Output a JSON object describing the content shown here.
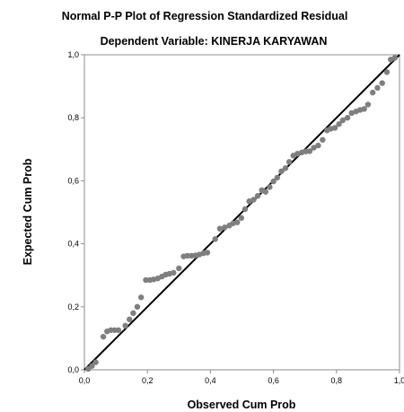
{
  "chart_data": {
    "type": "scatter",
    "title": "Normal P-P Plot of Regression Standardized Residual",
    "subtitle": "Dependent Variable: KINERJA KARYAWAN",
    "xlabel": "Observed Cum Prob",
    "ylabel": "Expected Cum Prob",
    "xlim": [
      0,
      1
    ],
    "ylim": [
      0,
      1
    ],
    "grid": false,
    "x_ticks": [
      "0,0",
      "0,2",
      "0,4",
      "0,6",
      "0,8",
      "1,0"
    ],
    "y_ticks": [
      "0,0",
      "0,2",
      "0,4",
      "0,6",
      "0,8",
      "1,0"
    ],
    "reference_line": {
      "from": [
        0,
        0
      ],
      "to": [
        1,
        1
      ]
    },
    "points": [
      [
        0.012,
        0.003
      ],
      [
        0.024,
        0.012
      ],
      [
        0.036,
        0.024
      ],
      [
        0.06,
        0.105
      ],
      [
        0.072,
        0.122
      ],
      [
        0.084,
        0.126
      ],
      [
        0.096,
        0.126
      ],
      [
        0.108,
        0.126
      ],
      [
        0.13,
        0.14
      ],
      [
        0.143,
        0.16
      ],
      [
        0.155,
        0.18
      ],
      [
        0.168,
        0.2
      ],
      [
        0.18,
        0.23
      ],
      [
        0.195,
        0.285
      ],
      [
        0.208,
        0.285
      ],
      [
        0.22,
        0.287
      ],
      [
        0.233,
        0.29
      ],
      [
        0.246,
        0.296
      ],
      [
        0.258,
        0.302
      ],
      [
        0.27,
        0.305
      ],
      [
        0.283,
        0.308
      ],
      [
        0.3,
        0.322
      ],
      [
        0.315,
        0.36
      ],
      [
        0.327,
        0.362
      ],
      [
        0.34,
        0.362
      ],
      [
        0.352,
        0.363
      ],
      [
        0.365,
        0.366
      ],
      [
        0.378,
        0.37
      ],
      [
        0.39,
        0.372
      ],
      [
        0.415,
        0.415
      ],
      [
        0.43,
        0.448
      ],
      [
        0.445,
        0.452
      ],
      [
        0.46,
        0.458
      ],
      [
        0.472,
        0.465
      ],
      [
        0.485,
        0.468
      ],
      [
        0.498,
        0.482
      ],
      [
        0.51,
        0.51
      ],
      [
        0.523,
        0.535
      ],
      [
        0.537,
        0.54
      ],
      [
        0.55,
        0.552
      ],
      [
        0.563,
        0.57
      ],
      [
        0.575,
        0.565
      ],
      [
        0.588,
        0.58
      ],
      [
        0.6,
        0.598
      ],
      [
        0.612,
        0.61
      ],
      [
        0.625,
        0.63
      ],
      [
        0.638,
        0.64
      ],
      [
        0.65,
        0.66
      ],
      [
        0.663,
        0.68
      ],
      [
        0.676,
        0.686
      ],
      [
        0.69,
        0.69
      ],
      [
        0.703,
        0.693
      ],
      [
        0.715,
        0.694
      ],
      [
        0.728,
        0.705
      ],
      [
        0.742,
        0.712
      ],
      [
        0.756,
        0.73
      ],
      [
        0.77,
        0.76
      ],
      [
        0.782,
        0.765
      ],
      [
        0.795,
        0.768
      ],
      [
        0.808,
        0.78
      ],
      [
        0.82,
        0.792
      ],
      [
        0.835,
        0.8
      ],
      [
        0.848,
        0.815
      ],
      [
        0.862,
        0.82
      ],
      [
        0.875,
        0.825
      ],
      [
        0.888,
        0.828
      ],
      [
        0.9,
        0.842
      ],
      [
        0.915,
        0.88
      ],
      [
        0.93,
        0.895
      ],
      [
        0.945,
        0.91
      ],
      [
        0.96,
        0.945
      ],
      [
        0.972,
        0.985
      ],
      [
        0.985,
        0.99
      ]
    ]
  },
  "colors": {
    "marker": "#7f7f7f",
    "reference_line": "#000000",
    "frame": "#8c8c8c"
  }
}
